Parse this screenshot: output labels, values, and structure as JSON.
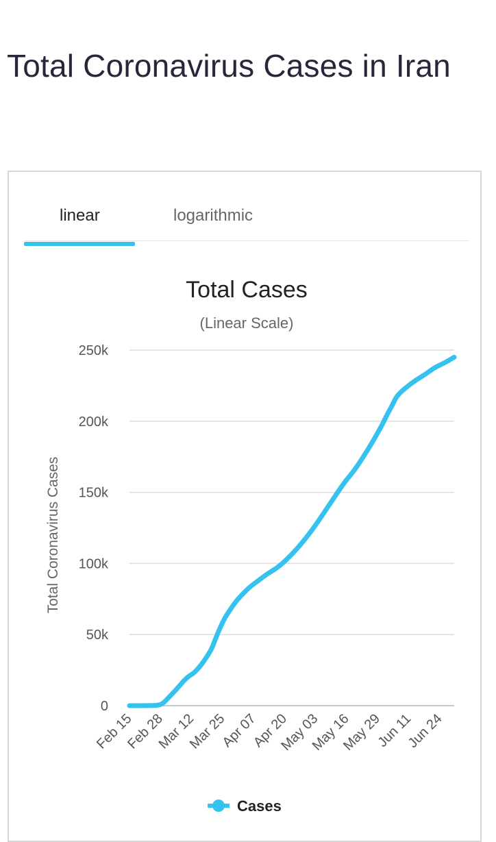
{
  "page_title": "Total Coronavirus Cases in Iran",
  "tabs": [
    {
      "label": "linear",
      "active": true
    },
    {
      "label": "logarithmic",
      "active": false
    }
  ],
  "colors": {
    "accent": "#36c2ee",
    "title": "#26283a",
    "grid": "#d9d9d9",
    "axis_text": "#555555"
  },
  "chart_data": {
    "type": "line",
    "title": "Total Cases",
    "subtitle": "(Linear Scale)",
    "ylabel": "Total Coronavirus Cases",
    "xlabel": "",
    "ylim": [
      0,
      250000
    ],
    "y_ticks": [
      0,
      50000,
      100000,
      150000,
      200000,
      250000
    ],
    "y_tick_labels": [
      "0",
      "50k",
      "100k",
      "150k",
      "200k",
      "250k"
    ],
    "x_tick_labels": [
      "Feb 15",
      "Feb 28",
      "Mar 12",
      "Mar 25",
      "Apr 07",
      "Apr 20",
      "May 03",
      "May 16",
      "May 29",
      "Jun 11",
      "Jun 24"
    ],
    "x_ticks_day": [
      0,
      13,
      26,
      39,
      52,
      65,
      78,
      91,
      104,
      117,
      130
    ],
    "x_range_day": [
      0,
      136
    ],
    "grid": true,
    "legend_position": "bottom",
    "series": [
      {
        "name": "Cases",
        "color": "#36c2ee",
        "x_day": [
          0,
          4,
          8,
          12,
          14,
          16,
          20,
          24,
          28,
          34,
          36,
          38,
          40,
          42,
          44,
          46,
          50,
          54,
          58,
          62,
          66,
          70,
          74,
          78,
          82,
          86,
          90,
          94,
          98,
          102,
          104,
          106,
          108,
          110,
          112,
          116,
          120,
          124,
          128,
          132,
          136
        ],
        "y": [
          0,
          0,
          0,
          200,
          1500,
          5000,
          12000,
          20000,
          24000,
          38000,
          47000,
          55000,
          62000,
          67000,
          72000,
          76000,
          83000,
          88000,
          93000,
          97000,
          103000,
          110000,
          118000,
          127000,
          137000,
          147000,
          157000,
          165000,
          175000,
          186000,
          192000,
          198000,
          205000,
          211000,
          218000,
          224000,
          229000,
          233000,
          238000,
          241000,
          245000
        ]
      }
    ]
  }
}
